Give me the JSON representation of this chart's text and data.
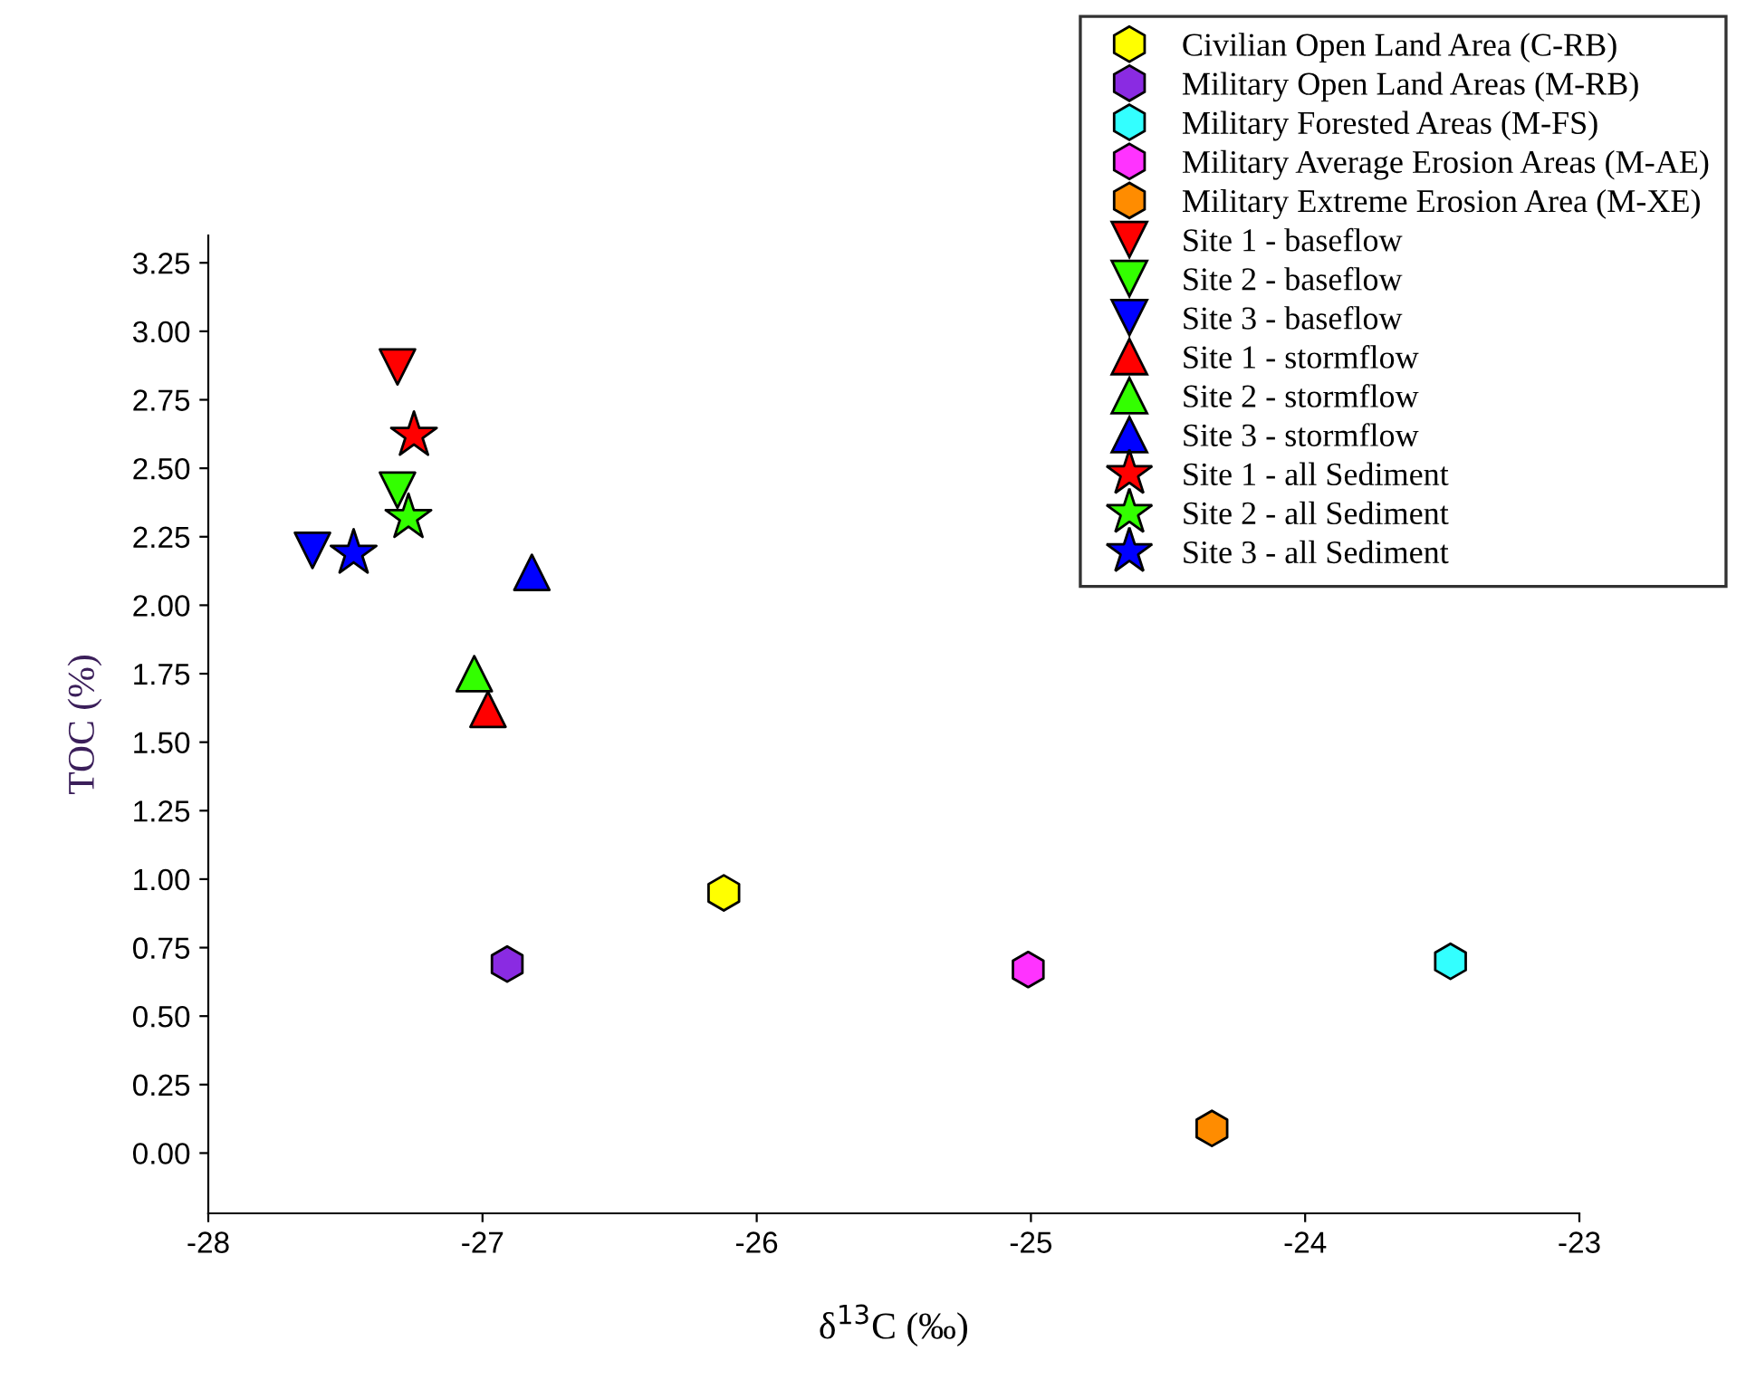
{
  "chart_data": {
    "type": "scatter",
    "xlabel": "δ$^{13}$C (‰)",
    "ylabel": "TOC (%)",
    "xlim": [
      -28,
      -23
    ],
    "xticks": [
      -28,
      -27,
      -26,
      -25,
      -24,
      -23
    ],
    "ylim": [
      -0.22,
      3.35
    ],
    "yticks": [
      {
        "value": 0,
        "label": "0.00"
      },
      {
        "value": 0.25,
        "label": "0.25"
      },
      {
        "value": 0.5,
        "label": "0.50"
      },
      {
        "value": 0.75,
        "label": "0.75"
      },
      {
        "value": 1,
        "label": "1.00"
      },
      {
        "value": 1.25,
        "label": "1.25"
      },
      {
        "value": 1.5,
        "label": "1.50"
      },
      {
        "value": 1.75,
        "label": "1.75"
      },
      {
        "value": 2,
        "label": "2.00"
      },
      {
        "value": 2.25,
        "label": "2.25"
      },
      {
        "value": 2.5,
        "label": "2.50"
      },
      {
        "value": 2.75,
        "label": "2.75"
      },
      {
        "value": 3,
        "label": "3.00"
      },
      {
        "value": 3.25,
        "label": "3.25"
      }
    ],
    "grid": false,
    "legend": "top right",
    "series": [
      {
        "name": "Civilian Open Land Area (C-RB)",
        "color": "#ffff00",
        "x": [
          -26.12
        ],
        "values": [
          0.95
        ]
      },
      {
        "name": "Military Open Land Areas (M-RB)",
        "color": "#8a2be2",
        "x": [
          -26.91
        ],
        "values": [
          0.69
        ]
      },
      {
        "name": "Military Forested Areas (M-FS)",
        "color": "#33ffff",
        "x": [
          -23.47
        ],
        "values": [
          0.7
        ]
      },
      {
        "name": "Military Average Erosion Areas (M-AE)",
        "color": "#ff33ff",
        "x": [
          -25.01
        ],
        "values": [
          0.67
        ]
      },
      {
        "name": "Military Extreme Erosion Area (M-XE)",
        "color": "#ff8c00",
        "x": [
          -24.34
        ],
        "values": [
          0.09
        ]
      },
      {
        "name": "Site 1 - baseflow",
        "color": "#ff0000",
        "marker": "triangle_down",
        "x": [
          -27.31
        ],
        "values": [
          2.87
        ]
      },
      {
        "name": "Site 2 - baseflow",
        "color": "#33ff00",
        "marker": "triangle_down",
        "x": [
          -27.31
        ],
        "values": [
          2.42
        ]
      },
      {
        "name": "Site 3 - baseflow",
        "color": "#0000ff",
        "marker": "triangle_down",
        "x": [
          -27.62
        ],
        "values": [
          2.2
        ]
      },
      {
        "name": "Site 1 - stormflow",
        "color": "#ff0000",
        "marker": "triangle",
        "x": [
          -26.98
        ],
        "values": [
          1.62
        ]
      },
      {
        "name": "Site 2 - stormflow",
        "color": "#33ff00",
        "marker": "triangle",
        "x": [
          -27.03
        ],
        "values": [
          1.75
        ]
      },
      {
        "name": "Site 3 - stormflow",
        "color": "#0000ff",
        "marker": "triangle",
        "x": [
          -26.82
        ],
        "values": [
          2.12
        ]
      },
      {
        "name": "Site 1 - all Sediment",
        "color": "#ff0000",
        "marker": "star",
        "x": [
          -27.25
        ],
        "values": [
          2.62
        ]
      },
      {
        "name": "Site 2 - all Sediment",
        "color": "#33ff00",
        "marker": "star",
        "x": [
          -27.27
        ],
        "values": [
          2.32
        ]
      },
      {
        "name": "Site 3 - all Sediment",
        "color": "#0000ff",
        "marker": "star",
        "x": [
          -27.47
        ],
        "values": [
          2.19
        ]
      }
    ]
  }
}
